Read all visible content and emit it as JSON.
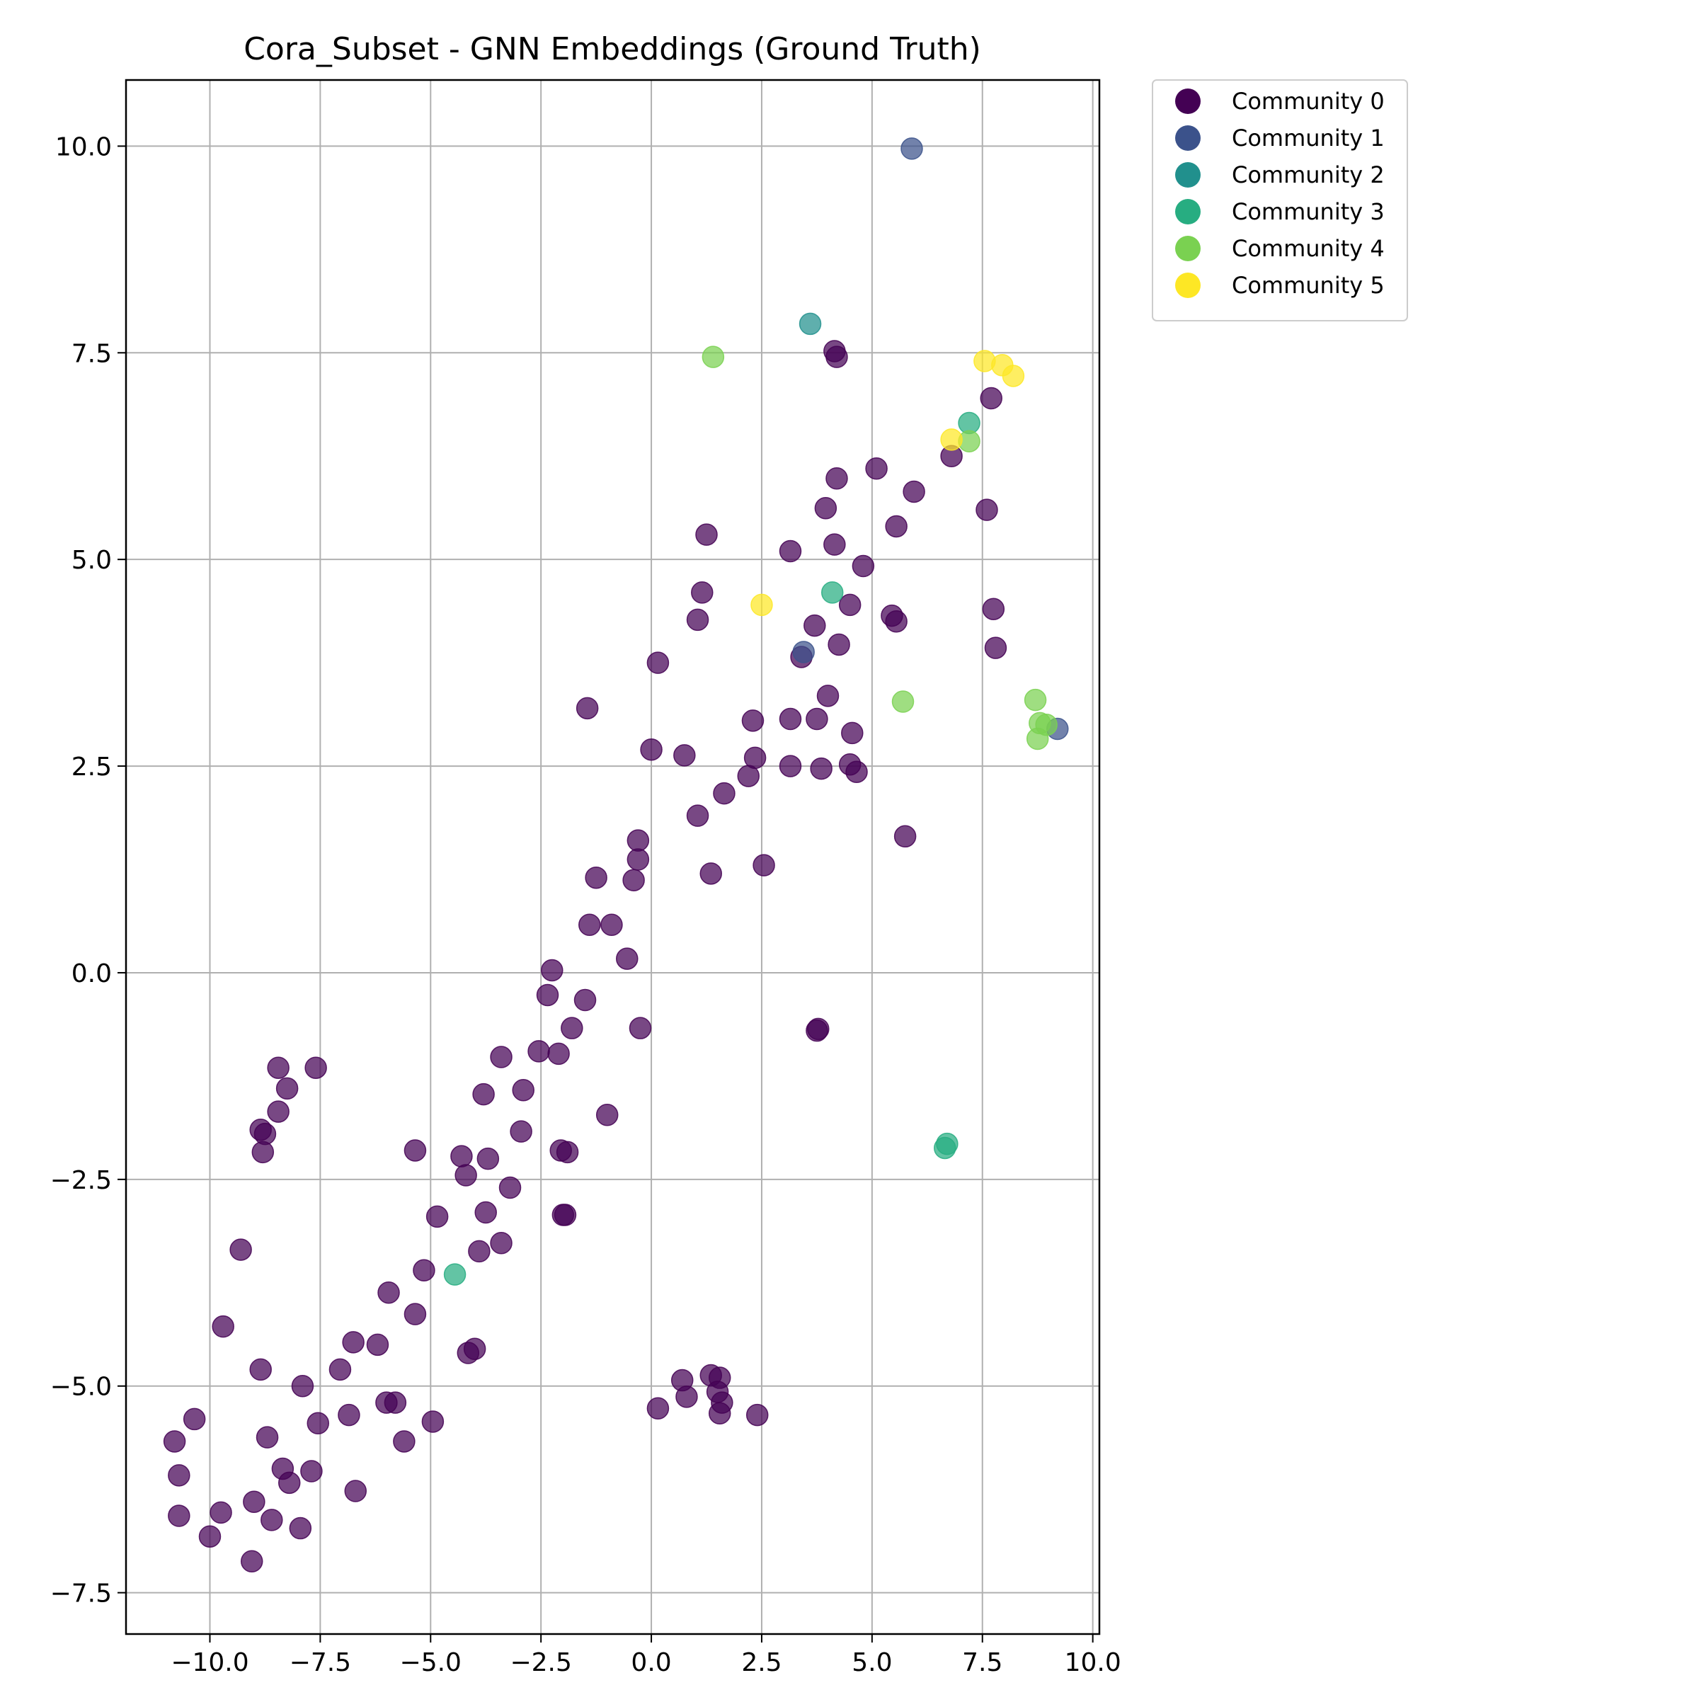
{
  "chart_data": {
    "type": "scatter",
    "title": "Cora_Subset - GNN Embeddings (Ground Truth)",
    "xlabel": "",
    "ylabel": "",
    "xlim": [
      -11.9,
      10.15
    ],
    "ylim": [
      -8.0,
      10.8
    ],
    "xticks": [
      -10.0,
      -7.5,
      -5.0,
      -2.5,
      0.0,
      2.5,
      5.0,
      7.5,
      10.0
    ],
    "xtick_labels": [
      "−10.0",
      "−7.5",
      "−5.0",
      "−2.5",
      "0.0",
      "2.5",
      "5.0",
      "7.5",
      "10.0"
    ],
    "yticks": [
      -7.5,
      -5.0,
      -2.5,
      0.0,
      2.5,
      5.0,
      7.5,
      10.0
    ],
    "ytick_labels": [
      "−7.5",
      "−5.0",
      "−2.5",
      "0.0",
      "2.5",
      "5.0",
      "7.5",
      "10.0"
    ],
    "grid": true,
    "legend_position": "outside-top-right",
    "series": [
      {
        "name": "Community 0",
        "color": "#440154",
        "points": [
          [
            4.15,
            7.52
          ],
          [
            4.2,
            7.45
          ],
          [
            7.7,
            6.95
          ],
          [
            6.8,
            6.25
          ],
          [
            7.6,
            5.6
          ],
          [
            5.1,
            6.1
          ],
          [
            5.95,
            5.82
          ],
          [
            4.2,
            5.98
          ],
          [
            3.95,
            5.62
          ],
          [
            5.55,
            5.4
          ],
          [
            1.25,
            5.3
          ],
          [
            3.15,
            5.1
          ],
          [
            4.15,
            5.18
          ],
          [
            4.8,
            4.92
          ],
          [
            1.15,
            4.6
          ],
          [
            1.05,
            4.27
          ],
          [
            4.5,
            4.45
          ],
          [
            5.45,
            4.32
          ],
          [
            5.55,
            4.25
          ],
          [
            3.7,
            4.2
          ],
          [
            7.75,
            4.4
          ],
          [
            7.8,
            3.93
          ],
          [
            4.25,
            3.97
          ],
          [
            0.15,
            3.75
          ],
          [
            3.4,
            3.82
          ],
          [
            4.0,
            3.35
          ],
          [
            -1.45,
            3.2
          ],
          [
            2.3,
            3.05
          ],
          [
            3.15,
            3.07
          ],
          [
            3.75,
            3.07
          ],
          [
            4.55,
            2.9
          ],
          [
            0.0,
            2.7
          ],
          [
            0.75,
            2.63
          ],
          [
            2.35,
            2.6
          ],
          [
            3.15,
            2.5
          ],
          [
            3.85,
            2.47
          ],
          [
            4.5,
            2.52
          ],
          [
            4.65,
            2.43
          ],
          [
            2.2,
            2.38
          ],
          [
            1.65,
            2.17
          ],
          [
            1.05,
            1.9
          ],
          [
            5.75,
            1.65
          ],
          [
            -0.3,
            1.6
          ],
          [
            -0.3,
            1.37
          ],
          [
            -1.25,
            1.15
          ],
          [
            -0.4,
            1.12
          ],
          [
            1.35,
            1.2
          ],
          [
            2.55,
            1.3
          ],
          [
            -1.4,
            0.58
          ],
          [
            -0.9,
            0.58
          ],
          [
            -0.55,
            0.17
          ],
          [
            -2.25,
            0.03
          ],
          [
            -2.35,
            -0.27
          ],
          [
            -1.5,
            -0.33
          ],
          [
            -1.8,
            -0.67
          ],
          [
            -0.25,
            -0.67
          ],
          [
            3.78,
            -0.68
          ],
          [
            3.75,
            -0.7
          ],
          [
            -2.55,
            -0.95
          ],
          [
            -2.1,
            -0.98
          ],
          [
            -3.4,
            -1.02
          ],
          [
            -3.8,
            -1.47
          ],
          [
            -2.9,
            -1.42
          ],
          [
            -1.0,
            -1.72
          ],
          [
            -2.95,
            -1.92
          ],
          [
            -5.35,
            -2.15
          ],
          [
            -4.3,
            -2.22
          ],
          [
            -3.7,
            -2.25
          ],
          [
            -2.05,
            -2.15
          ],
          [
            -1.9,
            -2.17
          ],
          [
            -4.2,
            -2.45
          ],
          [
            -3.2,
            -2.6
          ],
          [
            -4.85,
            -2.95
          ],
          [
            -3.75,
            -2.9
          ],
          [
            -2.0,
            -2.93
          ],
          [
            -1.95,
            -2.93
          ],
          [
            -3.4,
            -3.27
          ],
          [
            -3.9,
            -3.37
          ],
          [
            -5.15,
            -3.6
          ],
          [
            -5.95,
            -3.87
          ],
          [
            -5.35,
            -4.13
          ],
          [
            -6.2,
            -4.5
          ],
          [
            -6.75,
            -4.47
          ],
          [
            -4.0,
            -4.55
          ],
          [
            -4.15,
            -4.6
          ],
          [
            -7.05,
            -4.8
          ],
          [
            -7.9,
            -5.0
          ],
          [
            -6.0,
            -5.2
          ],
          [
            -5.8,
            -5.2
          ],
          [
            -6.85,
            -5.35
          ],
          [
            -7.55,
            -5.45
          ],
          [
            -4.95,
            -5.43
          ],
          [
            -5.6,
            -5.67
          ],
          [
            -8.7,
            -5.62
          ],
          [
            -8.35,
            -6.0
          ],
          [
            -7.7,
            -6.03
          ],
          [
            -8.2,
            -6.17
          ],
          [
            -6.7,
            -6.27
          ],
          [
            -9.0,
            -6.4
          ],
          [
            -9.75,
            -6.53
          ],
          [
            -8.6,
            -6.62
          ],
          [
            -7.95,
            -6.72
          ],
          [
            -10.0,
            -6.82
          ],
          [
            -9.05,
            -7.12
          ],
          [
            -10.8,
            -5.67
          ],
          [
            -10.35,
            -5.4
          ],
          [
            -10.7,
            -6.08
          ],
          [
            -10.7,
            -6.57
          ],
          [
            -9.7,
            -4.28
          ],
          [
            -9.3,
            -3.35
          ],
          [
            -8.85,
            -4.8
          ],
          [
            -8.45,
            -1.15
          ],
          [
            -7.6,
            -1.15
          ],
          [
            -8.25,
            -1.4
          ],
          [
            -8.45,
            -1.68
          ],
          [
            -8.85,
            -1.9
          ],
          [
            -8.75,
            -1.95
          ],
          [
            -8.8,
            -2.17
          ],
          [
            0.7,
            -4.93
          ],
          [
            1.35,
            -4.87
          ],
          [
            1.55,
            -4.9
          ],
          [
            1.5,
            -5.07
          ],
          [
            1.6,
            -5.2
          ],
          [
            0.8,
            -5.13
          ],
          [
            1.55,
            -5.33
          ],
          [
            0.15,
            -5.27
          ],
          [
            2.4,
            -5.35
          ]
        ]
      },
      {
        "name": "Community 1",
        "color": "#3b528b",
        "points": [
          [
            5.9,
            9.97
          ],
          [
            3.45,
            3.88
          ],
          [
            9.2,
            2.95
          ]
        ]
      },
      {
        "name": "Community 2",
        "color": "#21908d",
        "points": [
          [
            3.6,
            7.85
          ]
        ]
      },
      {
        "name": "Community 3",
        "color": "#27ad81",
        "points": [
          [
            7.2,
            6.65
          ],
          [
            4.1,
            4.6
          ],
          [
            -4.45,
            -3.65
          ],
          [
            6.7,
            -2.07
          ],
          [
            6.65,
            -2.12
          ]
        ]
      },
      {
        "name": "Community 4",
        "color": "#7ad151",
        "points": [
          [
            1.4,
            7.45
          ],
          [
            7.2,
            6.43
          ],
          [
            5.7,
            3.28
          ],
          [
            8.7,
            3.3
          ],
          [
            8.8,
            3.02
          ],
          [
            8.95,
            3.0
          ],
          [
            8.75,
            2.83
          ]
        ]
      },
      {
        "name": "Community 5",
        "color": "#fde725",
        "points": [
          [
            7.55,
            7.4
          ],
          [
            7.95,
            7.35
          ],
          [
            8.2,
            7.22
          ],
          [
            6.8,
            6.45
          ],
          [
            2.5,
            4.45
          ]
        ]
      }
    ]
  }
}
